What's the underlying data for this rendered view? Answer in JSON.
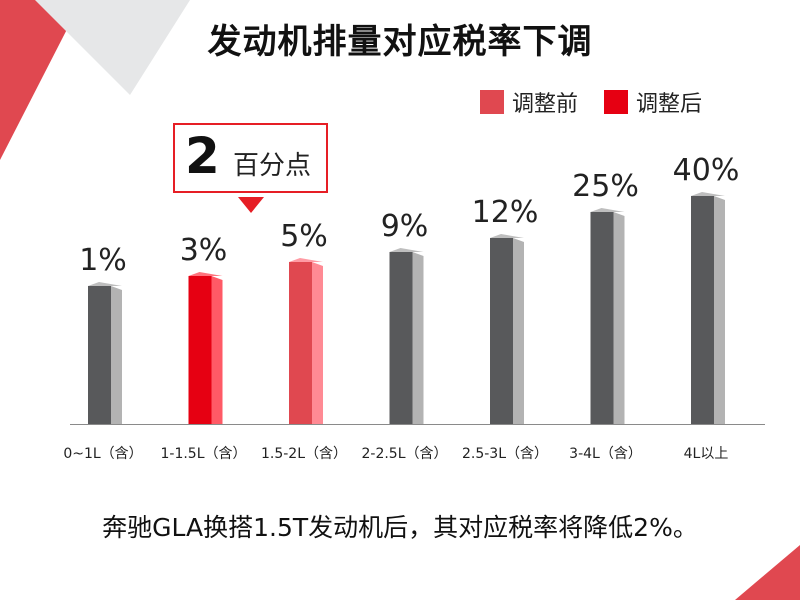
{
  "title": "发动机排量对应税率下调",
  "legend": {
    "before_label": "调整前",
    "after_label": "调整后",
    "before_color": "#e04850",
    "after_color": "#e60012"
  },
  "callout": {
    "value": "2",
    "unit": "百分点"
  },
  "caption": "奔驰GLA换搭1.5T发动机后，其对应税率将降低2%。",
  "colors": {
    "gray_bar": "#58595b",
    "gray_side": "#b3b3b3",
    "accent_red": "#e61e25"
  },
  "chart_data": {
    "type": "bar",
    "title": "发动机排量对应税率下调",
    "unit": "%",
    "categories": [
      "0~1L（含）",
      "1-1.5L（含）",
      "1.5-2L（含）",
      "2-2.5L（含）",
      "2.5-3L（含）",
      "3-4L（含）",
      "4L以上"
    ],
    "values": [
      1,
      3,
      5,
      9,
      12,
      25,
      40
    ],
    "value_labels": [
      "1%",
      "3%",
      "5%",
      "9%",
      "12%",
      "25%",
      "40%"
    ],
    "highlight": {
      "before_index": 2,
      "after_index": 1
    },
    "legend": [
      "调整前",
      "调整后"
    ],
    "legend_position": "top-right",
    "grid": false
  }
}
